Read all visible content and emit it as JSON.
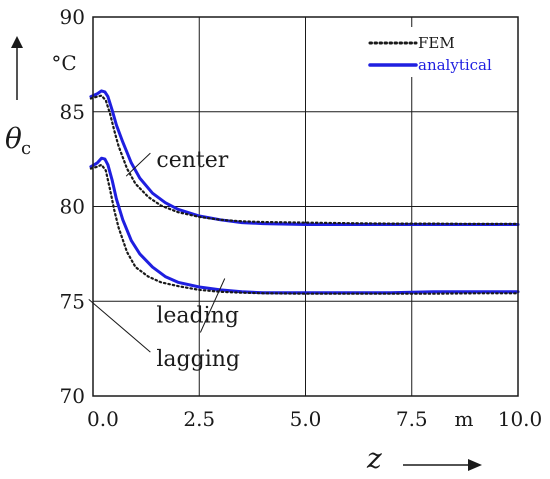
{
  "chart_data": {
    "type": "line",
    "xlabel": "z",
    "xunit": "m",
    "ylabel_var": "θ",
    "ylabel_sub": "c",
    "yunit": "°C",
    "xlim": [
      0,
      10
    ],
    "ylim": [
      70,
      90
    ],
    "xticks": [
      0,
      2.5,
      5,
      7.5,
      10
    ],
    "xtick_labels": [
      "0.0",
      "2.5",
      "5.0",
      "7.5",
      "10.0"
    ],
    "yticks": [
      70,
      75,
      80,
      85,
      90
    ],
    "ytick_labels": [
      "70",
      "75",
      "80",
      "85",
      "90"
    ],
    "grid": true,
    "legend_position": "top-right",
    "legend": [
      {
        "label": "FEM",
        "style": "dotted",
        "color": "#1a1a1a"
      },
      {
        "label": "analytical",
        "style": "solid",
        "color": "#1f1fe0"
      }
    ],
    "annotations": [
      {
        "text": "center",
        "x": 1.35,
        "y": 82.5,
        "point_x": 0.78,
        "point_y": 81.6
      },
      {
        "text": "leading",
        "x": 1.35,
        "y": 74.3,
        "point_x": 3.1,
        "point_y": 76.2
      },
      {
        "text": "lagging",
        "x": 1.35,
        "y": 72.0,
        "point_x": -0.1,
        "point_y": 75.1
      }
    ],
    "series": [
      {
        "group": "center",
        "style": "solid",
        "color": "#1f1fe0",
        "x": [
          -0.05,
          0.1,
          0.2,
          0.28,
          0.35,
          0.45,
          0.55,
          0.7,
          0.9,
          1.1,
          1.4,
          1.7,
          2.0,
          2.5,
          3.0,
          3.5,
          4.0,
          5.0,
          6.0,
          7.0,
          8.0,
          9.0,
          10.0
        ],
        "y": [
          85.8,
          85.95,
          86.1,
          86.05,
          85.8,
          85.1,
          84.3,
          83.4,
          82.3,
          81.5,
          80.7,
          80.2,
          79.85,
          79.5,
          79.3,
          79.15,
          79.1,
          79.05,
          79.05,
          79.05,
          79.05,
          79.05,
          79.05
        ]
      },
      {
        "group": "center",
        "style": "dotted",
        "color": "#1a1a1a",
        "x": [
          -0.05,
          0.1,
          0.2,
          0.3,
          0.4,
          0.5,
          0.6,
          0.8,
          1.0,
          1.3,
          1.6,
          2.0,
          2.5,
          3.0,
          3.5,
          4.0,
          5.0,
          6.0,
          7.0,
          8.0,
          9.0,
          10.0
        ],
        "y": [
          85.7,
          85.8,
          85.85,
          85.6,
          84.9,
          84.0,
          83.2,
          82.0,
          81.2,
          80.5,
          80.05,
          79.7,
          79.45,
          79.3,
          79.22,
          79.18,
          79.15,
          79.12,
          79.1,
          79.1,
          79.08,
          79.08
        ]
      },
      {
        "group": "leading_lagging",
        "style": "solid",
        "color": "#1f1fe0",
        "x": [
          -0.05,
          0.1,
          0.2,
          0.28,
          0.35,
          0.45,
          0.55,
          0.7,
          0.9,
          1.1,
          1.4,
          1.7,
          2.0,
          2.5,
          3.0,
          3.5,
          4.0,
          5.0,
          6.0,
          7.0,
          8.0,
          9.0,
          10.0
        ],
        "y": [
          82.1,
          82.3,
          82.55,
          82.5,
          82.2,
          81.4,
          80.4,
          79.3,
          78.2,
          77.5,
          76.8,
          76.3,
          76.0,
          75.75,
          75.6,
          75.5,
          75.45,
          75.45,
          75.45,
          75.45,
          75.5,
          75.5,
          75.5
        ]
      },
      {
        "group": "leading_lagging",
        "style": "dotted",
        "color": "#1a1a1a",
        "x": [
          -0.05,
          0.1,
          0.2,
          0.3,
          0.4,
          0.5,
          0.6,
          0.8,
          1.0,
          1.3,
          1.6,
          2.0,
          2.5,
          3.0,
          3.5,
          4.0,
          5.0,
          6.0,
          7.0,
          8.0,
          9.0,
          10.0
        ],
        "y": [
          82.0,
          82.1,
          82.2,
          81.9,
          80.9,
          79.8,
          78.9,
          77.6,
          76.8,
          76.3,
          76.0,
          75.8,
          75.6,
          75.5,
          75.45,
          75.42,
          75.4,
          75.4,
          75.4,
          75.4,
          75.42,
          75.42
        ]
      }
    ]
  }
}
